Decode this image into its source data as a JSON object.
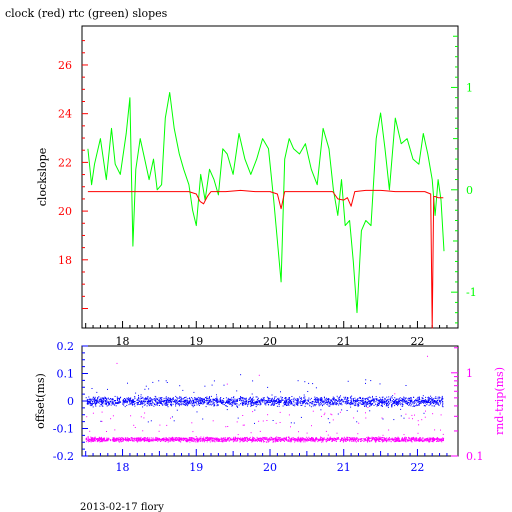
{
  "footer": "2013-02-17  flory",
  "chart_data": [
    {
      "type": "line",
      "title": "clock (red) rtc (green) slopes",
      "xlabel": "",
      "ylabel": "clockslope",
      "x_ticks": [
        "18",
        "19",
        "20",
        "21",
        "22"
      ],
      "xlim": [
        17.45,
        22.55
      ],
      "ylim": [
        15.2,
        27.6
      ],
      "y_ticks": [
        "18",
        "20",
        "22",
        "24",
        "26"
      ],
      "y2lim": [
        -1.35,
        1.6
      ],
      "y2_ticks": [
        "-1",
        "0",
        "1"
      ],
      "series": [
        {
          "color": "#00ff00",
          "axis": "right",
          "x": [
            17.53,
            17.58,
            17.62,
            17.7,
            17.78,
            17.85,
            17.9,
            17.97,
            18.05,
            18.1,
            18.14,
            18.18,
            18.24,
            18.3,
            18.36,
            18.42,
            18.47,
            18.53,
            18.58,
            18.64,
            18.7,
            18.77,
            18.83,
            18.9,
            18.95,
            19.0,
            19.06,
            19.12,
            19.18,
            19.24,
            19.3,
            19.36,
            19.42,
            19.5,
            19.58,
            19.66,
            19.74,
            19.82,
            19.9,
            19.98,
            20.05,
            20.1,
            20.15,
            20.2,
            20.26,
            20.32,
            20.4,
            20.48,
            20.56,
            20.64,
            20.72,
            20.8,
            20.86,
            20.92,
            20.97,
            21.02,
            21.08,
            21.13,
            21.18,
            21.24,
            21.3,
            21.37,
            21.44,
            21.5,
            21.56,
            21.62,
            21.7,
            21.78,
            21.86,
            21.94,
            22.02,
            22.08,
            22.14,
            22.2,
            22.24,
            22.28,
            22.32,
            22.36
          ],
          "y": [
            0.4,
            0.05,
            0.25,
            0.5,
            0.1,
            0.6,
            0.25,
            0.15,
            0.55,
            0.9,
            -0.55,
            0.2,
            0.5,
            0.3,
            0.1,
            0.3,
            0.0,
            0.05,
            0.7,
            0.95,
            0.6,
            0.35,
            0.2,
            0.05,
            -0.2,
            -0.35,
            0.15,
            -0.1,
            0.2,
            0.1,
            -0.05,
            0.4,
            0.35,
            0.15,
            0.55,
            0.3,
            0.15,
            0.3,
            0.5,
            0.4,
            -0.1,
            -0.5,
            -0.9,
            0.3,
            0.5,
            0.4,
            0.35,
            0.45,
            0.2,
            0.05,
            0.6,
            0.4,
            0.0,
            -0.25,
            0.1,
            -0.35,
            -0.3,
            -0.7,
            -1.2,
            -0.4,
            -0.3,
            -0.35,
            0.5,
            0.75,
            0.4,
            0.0,
            0.7,
            0.45,
            0.5,
            0.3,
            0.25,
            0.55,
            0.35,
            0.1,
            -0.25,
            0.1,
            -0.1,
            -0.6
          ]
        },
        {
          "color": "#ff0000",
          "axis": "left",
          "x": [
            17.53,
            17.7,
            17.9,
            18.1,
            18.3,
            18.5,
            18.7,
            18.9,
            19.0,
            19.05,
            19.1,
            19.15,
            19.2,
            19.4,
            19.6,
            19.8,
            20.0,
            20.1,
            20.15,
            20.2,
            20.3,
            20.5,
            20.7,
            20.85,
            20.92,
            21.0,
            21.05,
            21.1,
            21.15,
            21.3,
            21.5,
            21.7,
            21.9,
            22.1,
            22.18,
            22.2,
            22.22,
            22.24,
            22.28,
            22.35
          ],
          "y": [
            20.8,
            20.8,
            20.8,
            20.8,
            20.8,
            20.8,
            20.8,
            20.8,
            20.7,
            20.4,
            20.3,
            20.6,
            20.8,
            20.8,
            20.85,
            20.8,
            20.8,
            20.7,
            20.1,
            20.8,
            20.8,
            20.8,
            20.8,
            20.8,
            20.5,
            20.45,
            20.55,
            20.2,
            20.8,
            20.85,
            20.85,
            20.8,
            20.8,
            20.8,
            20.7,
            15.2,
            20.6,
            20.6,
            20.55,
            20.55
          ]
        }
      ]
    },
    {
      "type": "scatter",
      "xlabel": "",
      "ylabel": "offset(ms)",
      "y2label": "rnd-trip(ms)",
      "x_ticks": [
        "18",
        "19",
        "20",
        "21",
        "22"
      ],
      "xlim": [
        17.45,
        22.55
      ],
      "ylim": [
        -0.2,
        0.2
      ],
      "y_ticks": [
        "0.2",
        "0.1",
        "0",
        "-0.1",
        "-0.2"
      ],
      "y2_scale": "log",
      "y2lim": [
        0.1,
        2.1
      ],
      "y2_ticks": [
        "1",
        "0.1"
      ],
      "series": [
        {
          "color": "#0000ff",
          "axis": "left",
          "x_range": [
            17.5,
            22.35
          ],
          "y_center": 0.0,
          "y_spread": 0.02,
          "y_max_outlier": 0.1
        },
        {
          "color": "#ff00ff",
          "axis": "right",
          "x_range": [
            17.5,
            22.35
          ],
          "y_center": 0.16,
          "y_spread": 0.012,
          "y_max_outlier": 2.0
        }
      ]
    }
  ]
}
